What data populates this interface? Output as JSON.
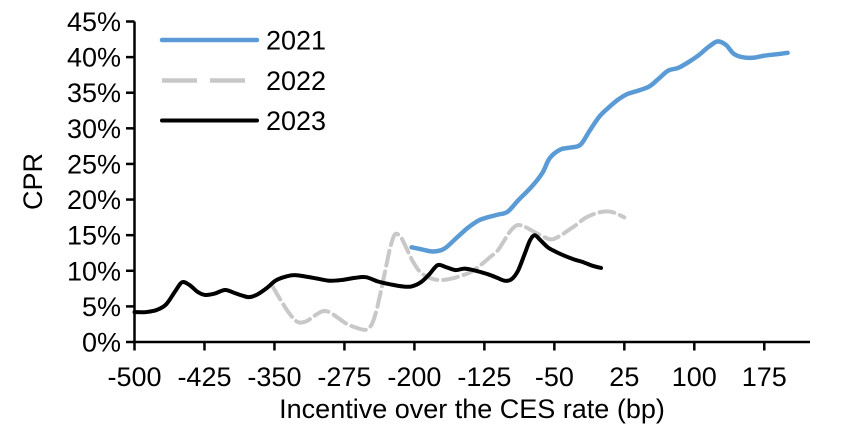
{
  "page": {
    "background": "#ffffff"
  },
  "chart_data": {
    "type": "line",
    "title": "",
    "xlabel": "Incentive over the CES rate (bp)",
    "ylabel": "CPR",
    "xlim": [
      -500,
      224
    ],
    "ylim": [
      0,
      45
    ],
    "grid": false,
    "legend_position": "inside-top-left",
    "axis_color": "#000000",
    "x_ticks": [
      -500,
      -425,
      -350,
      -275,
      -200,
      -125,
      -50,
      25,
      100,
      175
    ],
    "x_tick_labels": [
      "-500",
      "-425",
      "-350",
      "-275",
      "-200",
      "-125",
      "-50",
      "25",
      "100",
      "175"
    ],
    "y_ticks": [
      0,
      5,
      10,
      15,
      20,
      25,
      30,
      35,
      40,
      45
    ],
    "y_tick_labels": [
      "0%",
      "5%",
      "10%",
      "15%",
      "20%",
      "25%",
      "30%",
      "35%",
      "40%",
      "45%"
    ],
    "series": [
      {
        "name": "2021",
        "color": "#5B9BD5",
        "style": "solid",
        "points": [
          [
            -203,
            13.3
          ],
          [
            -192,
            13.0
          ],
          [
            -180,
            12.7
          ],
          [
            -168,
            13.1
          ],
          [
            -155,
            14.6
          ],
          [
            -143,
            16.0
          ],
          [
            -132,
            17.0
          ],
          [
            -122,
            17.5
          ],
          [
            -110,
            17.9
          ],
          [
            -100,
            18.3
          ],
          [
            -88,
            20.0
          ],
          [
            -75,
            21.7
          ],
          [
            -63,
            23.7
          ],
          [
            -55,
            25.8
          ],
          [
            -44,
            27.0
          ],
          [
            -33,
            27.3
          ],
          [
            -22,
            27.7
          ],
          [
            -12,
            29.7
          ],
          [
            -2,
            31.6
          ],
          [
            8,
            32.9
          ],
          [
            18,
            34.0
          ],
          [
            28,
            34.8
          ],
          [
            40,
            35.3
          ],
          [
            52,
            35.9
          ],
          [
            62,
            37.0
          ],
          [
            72,
            38.1
          ],
          [
            83,
            38.5
          ],
          [
            95,
            39.4
          ],
          [
            105,
            40.3
          ],
          [
            115,
            41.4
          ],
          [
            125,
            42.2
          ],
          [
            134,
            41.7
          ],
          [
            142,
            40.5
          ],
          [
            151,
            40.0
          ],
          [
            162,
            39.9
          ],
          [
            175,
            40.2
          ],
          [
            188,
            40.4
          ],
          [
            200,
            40.6
          ]
        ]
      },
      {
        "name": "2022",
        "color": "#C8C8C8",
        "style": "dashed",
        "points": [
          [
            -352,
            7.8
          ],
          [
            -343,
            5.8
          ],
          [
            -334,
            4.0
          ],
          [
            -325,
            2.8
          ],
          [
            -316,
            2.9
          ],
          [
            -308,
            3.6
          ],
          [
            -299,
            4.3
          ],
          [
            -291,
            4.2
          ],
          [
            -282,
            3.4
          ],
          [
            -272,
            2.5
          ],
          [
            -262,
            2.0
          ],
          [
            -253,
            1.7
          ],
          [
            -247,
            2.2
          ],
          [
            -242,
            3.8
          ],
          [
            -237,
            6.5
          ],
          [
            -231,
            10.2
          ],
          [
            -226,
            13.2
          ],
          [
            -221,
            15.1
          ],
          [
            -215,
            14.8
          ],
          [
            -209,
            13.3
          ],
          [
            -202,
            11.4
          ],
          [
            -195,
            10.0
          ],
          [
            -187,
            9.2
          ],
          [
            -179,
            8.8
          ],
          [
            -170,
            8.7
          ],
          [
            -160,
            8.9
          ],
          [
            -150,
            9.3
          ],
          [
            -140,
            9.8
          ],
          [
            -130,
            10.7
          ],
          [
            -120,
            11.8
          ],
          [
            -111,
            12.8
          ],
          [
            -104,
            14.2
          ],
          [
            -97,
            15.6
          ],
          [
            -90,
            16.4
          ],
          [
            -82,
            16.2
          ],
          [
            -72,
            15.5
          ],
          [
            -62,
            14.8
          ],
          [
            -53,
            14.4
          ],
          [
            -44,
            14.9
          ],
          [
            -35,
            15.7
          ],
          [
            -27,
            16.4
          ],
          [
            -17,
            17.4
          ],
          [
            -7,
            18.0
          ],
          [
            2,
            18.3
          ],
          [
            10,
            18.3
          ],
          [
            17,
            18.0
          ],
          [
            25,
            17.5
          ]
        ]
      },
      {
        "name": "2023",
        "color": "#000000",
        "style": "solid",
        "points": [
          [
            -500,
            4.2
          ],
          [
            -488,
            4.2
          ],
          [
            -476,
            4.5
          ],
          [
            -466,
            5.3
          ],
          [
            -456,
            7.2
          ],
          [
            -449,
            8.4
          ],
          [
            -441,
            8.0
          ],
          [
            -432,
            7.0
          ],
          [
            -424,
            6.6
          ],
          [
            -414,
            6.8
          ],
          [
            -403,
            7.3
          ],
          [
            -393,
            6.9
          ],
          [
            -384,
            6.5
          ],
          [
            -377,
            6.3
          ],
          [
            -368,
            6.7
          ],
          [
            -358,
            7.6
          ],
          [
            -349,
            8.6
          ],
          [
            -340,
            9.1
          ],
          [
            -329,
            9.4
          ],
          [
            -317,
            9.2
          ],
          [
            -304,
            8.9
          ],
          [
            -291,
            8.6
          ],
          [
            -278,
            8.7
          ],
          [
            -264,
            9.0
          ],
          [
            -252,
            9.1
          ],
          [
            -239,
            8.5
          ],
          [
            -226,
            8.1
          ],
          [
            -213,
            7.8
          ],
          [
            -203,
            7.8
          ],
          [
            -193,
            8.4
          ],
          [
            -184,
            9.5
          ],
          [
            -175,
            10.8
          ],
          [
            -166,
            10.5
          ],
          [
            -156,
            10.1
          ],
          [
            -146,
            10.3
          ],
          [
            -134,
            10.0
          ],
          [
            -121,
            9.5
          ],
          [
            -111,
            9.0
          ],
          [
            -103,
            8.6
          ],
          [
            -96,
            8.8
          ],
          [
            -89,
            10.0
          ],
          [
            -82,
            12.3
          ],
          [
            -76,
            14.3
          ],
          [
            -71,
            15.0
          ],
          [
            -65,
            14.3
          ],
          [
            -57,
            13.3
          ],
          [
            -49,
            12.7
          ],
          [
            -39,
            12.1
          ],
          [
            -29,
            11.6
          ],
          [
            -19,
            11.2
          ],
          [
            -9,
            10.7
          ],
          [
            0,
            10.4
          ]
        ]
      }
    ]
  }
}
